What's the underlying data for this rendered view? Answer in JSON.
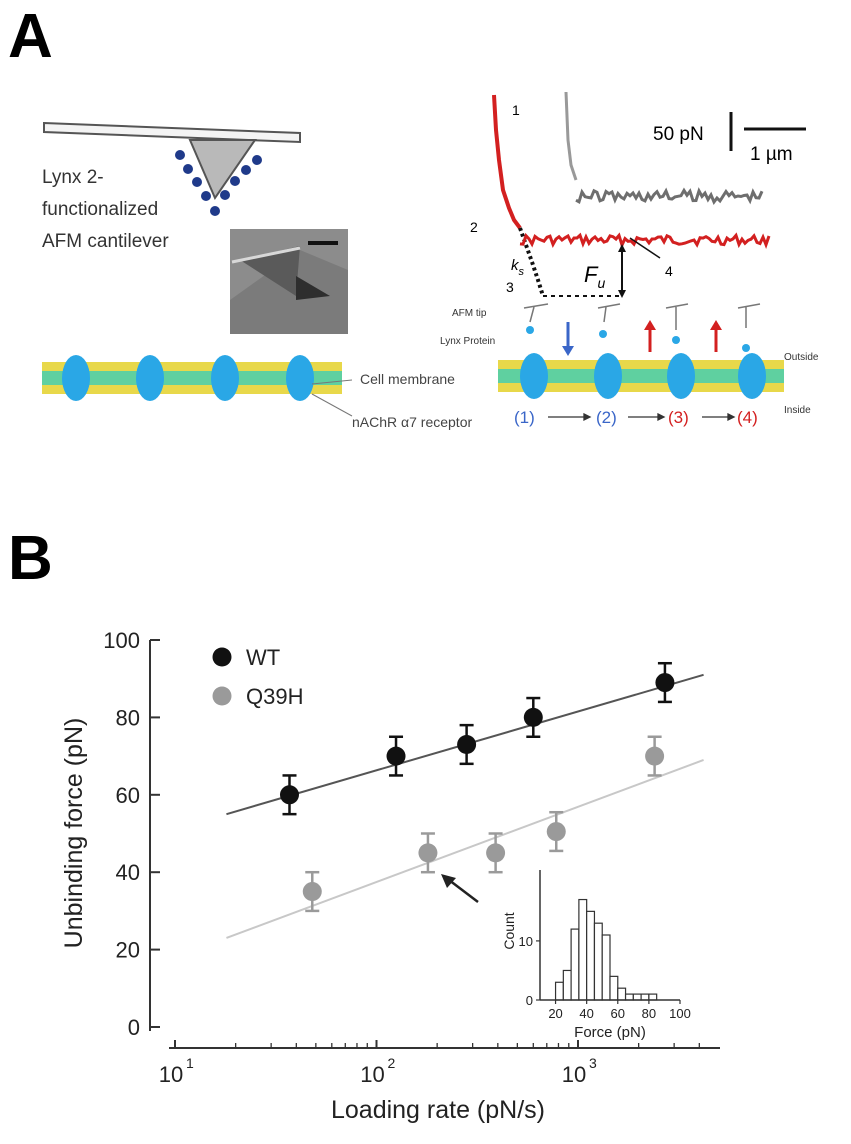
{
  "panel_a": {
    "letter": "A",
    "cantilever_label": [
      "Lynx 2-",
      "functionalized",
      "AFM cantilever"
    ],
    "scale_force": "50 pN",
    "scale_distance": "1 µm",
    "trace_labels": [
      "1",
      "2",
      "3",
      "4"
    ],
    "ks_label": "k",
    "ks_sub": "s",
    "fu_label": "F",
    "fu_sub": "u",
    "afm_tip": "AFM tip",
    "lynx_protein": "Lynx Protein",
    "cell_membrane": "Cell membrane",
    "receptor": "nAChR α7 receptor",
    "outside": "Outside",
    "inside": "Inside",
    "steps": [
      "(1)",
      "(2)",
      "(3)",
      "(4)"
    ],
    "colors": {
      "membrane_yellow": "#e8d84a",
      "membrane_green": "#5fd0a0",
      "receptor": "#2aa7e6",
      "bead": "#1f3a8a",
      "red": "#d32020",
      "blue": "#3a66c8",
      "gray_trace": "#707070"
    }
  },
  "panel_b": {
    "letter": "B"
  },
  "chart_data": [
    {
      "type": "scatter",
      "x_scale": "log",
      "xlabel": "Loading rate (pN/s)",
      "ylabel": "Unbinding force (pN)",
      "xlim": [
        10,
        4500
      ],
      "ylim": [
        0,
        100
      ],
      "x_ticks": [
        "10",
        "10",
        "10"
      ],
      "x_tick_exponents": [
        "1",
        "2",
        "3"
      ],
      "y_ticks": [
        "0",
        "20",
        "40",
        "60",
        "80",
        "100"
      ],
      "legend_position": "top-left",
      "series": [
        {
          "name": "WT",
          "color": "#111111",
          "x": [
            37,
            125,
            280,
            600,
            2700
          ],
          "y": [
            60,
            70,
            73,
            80,
            89
          ],
          "err": [
            5,
            5,
            5,
            5,
            5
          ],
          "fit": {
            "x": [
              18,
              4200
            ],
            "y": [
              55,
              91
            ]
          }
        },
        {
          "name": "Q39H",
          "color": "#9a9a9a",
          "x": [
            48,
            180,
            390,
            780,
            2400
          ],
          "y": [
            35,
            45,
            45,
            50.5,
            70
          ],
          "err": [
            5,
            5,
            5,
            5,
            5
          ],
          "fit": {
            "x": [
              18,
              4200
            ],
            "y": [
              23,
              69
            ]
          }
        }
      ]
    },
    {
      "type": "bar",
      "title": "",
      "xlabel": "Force (pN)",
      "ylabel": "Count",
      "xlim": [
        10,
        100
      ],
      "ylim": [
        0,
        22
      ],
      "x_ticks": [
        "20",
        "40",
        "60",
        "80",
        "100"
      ],
      "y_ticks": [
        "0",
        "10"
      ],
      "bin_width": 5,
      "bin_starts": [
        20,
        25,
        30,
        35,
        40,
        45,
        50,
        55,
        60,
        65,
        70,
        75,
        80,
        85
      ],
      "values": [
        3,
        5,
        12,
        17,
        15,
        13,
        11,
        4,
        2,
        1,
        1,
        1,
        1,
        0
      ]
    }
  ]
}
